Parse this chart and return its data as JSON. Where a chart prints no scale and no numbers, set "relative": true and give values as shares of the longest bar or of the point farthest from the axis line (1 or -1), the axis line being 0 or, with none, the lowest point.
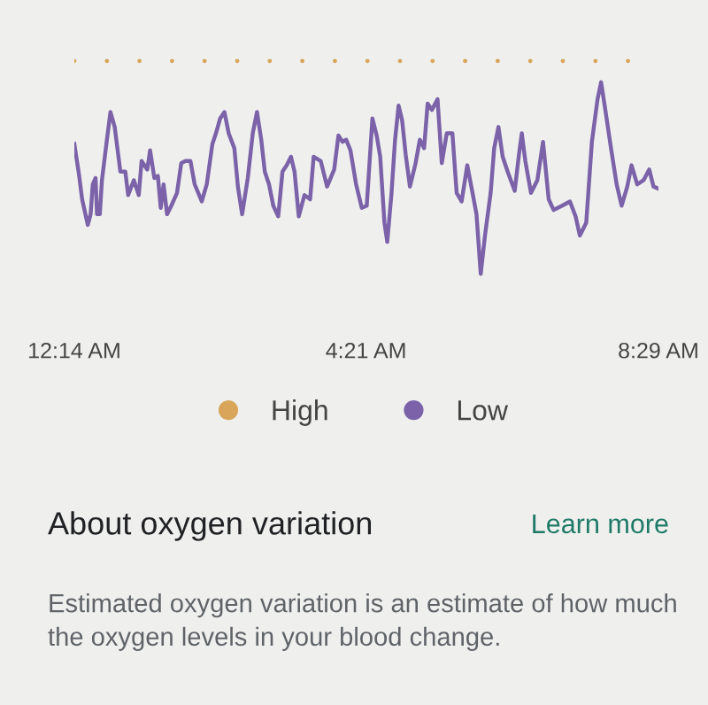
{
  "chart_data": {
    "type": "line",
    "relative": true,
    "xlim": [
      0.23,
      8.48
    ],
    "xticks": [
      {
        "value": 0.23,
        "label": "12:14 AM"
      },
      {
        "value": 4.35,
        "label": "4:21 AM"
      },
      {
        "value": 8.48,
        "label": "8:29 AM"
      }
    ],
    "grid": false,
    "legend": "bottom",
    "series": [
      {
        "name": "High",
        "type": "scatter",
        "marker": "circle",
        "color": "#d9a55a",
        "x": [
          0.23,
          0.69,
          1.15,
          1.61,
          2.07,
          2.53,
          2.99,
          3.45,
          3.91,
          4.37,
          4.83,
          5.29,
          5.75,
          6.21,
          6.67,
          7.13,
          7.59,
          8.05
        ],
        "values": [
          1,
          1,
          1,
          1,
          1,
          1,
          1,
          1,
          1,
          1,
          1,
          1,
          1,
          1,
          1,
          1,
          1,
          1
        ]
      },
      {
        "name": "Low",
        "type": "line",
        "color": "#7b62a9",
        "x": [
          0.23,
          0.29,
          0.34,
          0.42,
          0.46,
          0.49,
          0.53,
          0.55,
          0.59,
          0.62,
          0.69,
          0.74,
          0.8,
          0.88,
          0.95,
          0.99,
          1.07,
          1.14,
          1.18,
          1.26,
          1.3,
          1.36,
          1.41,
          1.45,
          1.49,
          1.54,
          1.6,
          1.68,
          1.74,
          1.8,
          1.87,
          1.93,
          2.03,
          2.1,
          2.18,
          2.23,
          2.29,
          2.35,
          2.41,
          2.49,
          2.54,
          2.6,
          2.68,
          2.75,
          2.81,
          2.87,
          2.92,
          2.98,
          3.04,
          3.11,
          3.17,
          3.23,
          3.29,
          3.34,
          3.4,
          3.48,
          3.56,
          3.61,
          3.71,
          3.8,
          3.9,
          3.96,
          4.02,
          4.07,
          4.13,
          4.21,
          4.29,
          4.36,
          4.44,
          4.5,
          4.55,
          4.61,
          4.65,
          4.71,
          4.76,
          4.81,
          4.86,
          4.91,
          4.97,
          5.05,
          5.11,
          5.17,
          5.22,
          5.28,
          5.36,
          5.42,
          5.49,
          5.57,
          5.63,
          5.7,
          5.78,
          5.86,
          5.91,
          5.97,
          6.03,
          6.11,
          6.16,
          6.22,
          6.28,
          6.35,
          6.45,
          6.51,
          6.55,
          6.6,
          6.68,
          6.77,
          6.85,
          6.93,
          7.0,
          7.12,
          7.23,
          7.31,
          7.37,
          7.46,
          7.54,
          7.62,
          7.67,
          7.73,
          7.81,
          7.89,
          7.96,
          8.04,
          8.1,
          8.18,
          8.27,
          8.35,
          8.41,
          8.48
        ],
        "values": [
          0.61,
          0.48,
          0.35,
          0.23,
          0.28,
          0.42,
          0.45,
          0.28,
          0.28,
          0.44,
          0.63,
          0.76,
          0.69,
          0.48,
          0.48,
          0.37,
          0.44,
          0.37,
          0.53,
          0.49,
          0.58,
          0.45,
          0.46,
          0.31,
          0.42,
          0.28,
          0.32,
          0.38,
          0.52,
          0.53,
          0.53,
          0.42,
          0.34,
          0.42,
          0.61,
          0.66,
          0.73,
          0.76,
          0.66,
          0.59,
          0.41,
          0.28,
          0.45,
          0.66,
          0.76,
          0.63,
          0.48,
          0.42,
          0.32,
          0.27,
          0.48,
          0.51,
          0.55,
          0.48,
          0.27,
          0.37,
          0.35,
          0.55,
          0.53,
          0.41,
          0.49,
          0.65,
          0.62,
          0.63,
          0.58,
          0.42,
          0.31,
          0.32,
          0.73,
          0.65,
          0.55,
          0.24,
          0.15,
          0.38,
          0.63,
          0.79,
          0.72,
          0.56,
          0.41,
          0.52,
          0.63,
          0.59,
          0.8,
          0.77,
          0.82,
          0.52,
          0.66,
          0.66,
          0.38,
          0.34,
          0.51,
          0.37,
          0.28,
          0.0,
          0.18,
          0.38,
          0.59,
          0.69,
          0.55,
          0.48,
          0.39,
          0.56,
          0.66,
          0.53,
          0.38,
          0.44,
          0.62,
          0.35,
          0.3,
          0.32,
          0.34,
          0.27,
          0.18,
          0.24,
          0.62,
          0.82,
          0.9,
          0.77,
          0.59,
          0.42,
          0.32,
          0.41,
          0.51,
          0.42,
          0.44,
          0.49,
          0.41,
          0.4
        ]
      }
    ],
    "annotations": [
      "About oxygen variation",
      "Learn more",
      "Estimated oxygen variation is an estimate of how much the oxygen levels in your blood change."
    ]
  }
}
